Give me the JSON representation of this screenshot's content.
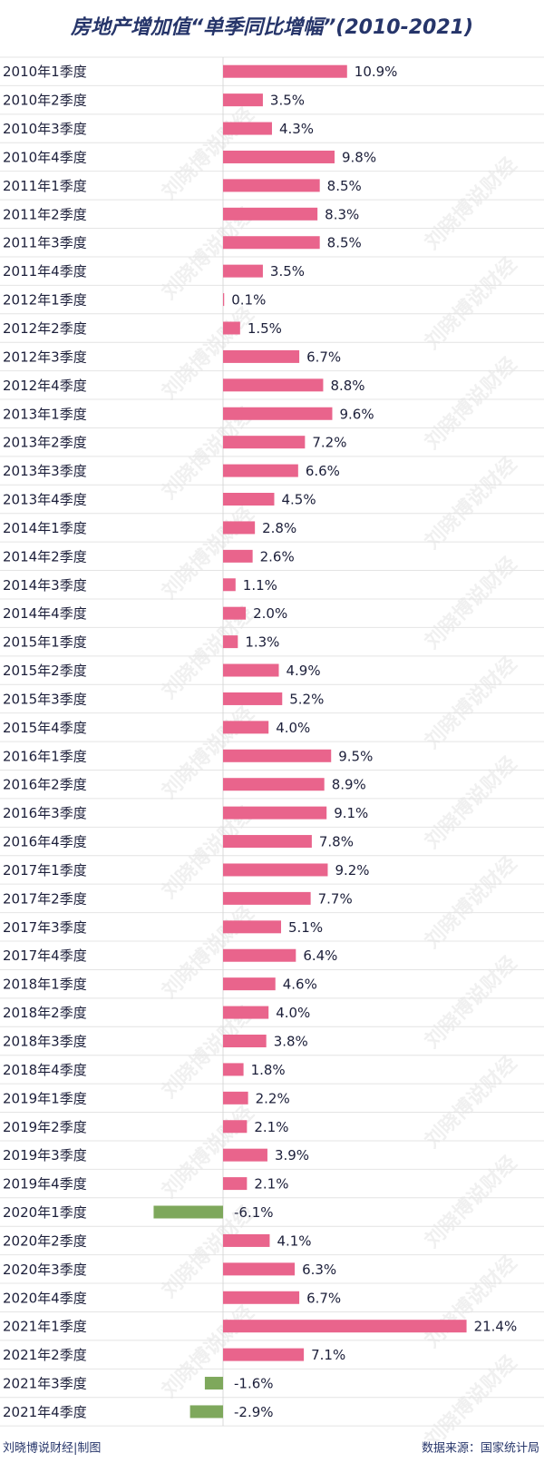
{
  "chart_data": {
    "type": "hbar",
    "title": "房地产增加值“单季同比增幅”(2010-2021)",
    "categories": [
      "2010年1季度",
      "2010年2季度",
      "2010年3季度",
      "2010年4季度",
      "2011年1季度",
      "2011年2季度",
      "2011年3季度",
      "2011年4季度",
      "2012年1季度",
      "2012年2季度",
      "2012年3季度",
      "2012年4季度",
      "2013年1季度",
      "2013年2季度",
      "2013年3季度",
      "2013年4季度",
      "2014年1季度",
      "2014年2季度",
      "2014年3季度",
      "2014年4季度",
      "2015年1季度",
      "2015年2季度",
      "2015年3季度",
      "2015年4季度",
      "2016年1季度",
      "2016年2季度",
      "2016年3季度",
      "2016年4季度",
      "2017年1季度",
      "2017年2季度",
      "2017年3季度",
      "2017年4季度",
      "2018年1季度",
      "2018年2季度",
      "2018年3季度",
      "2018年4季度",
      "2019年1季度",
      "2019年2季度",
      "2019年3季度",
      "2019年4季度",
      "2020年1季度",
      "2020年2季度",
      "2020年3季度",
      "2020年4季度",
      "2021年1季度",
      "2021年2季度",
      "2021年3季度",
      "2021年4季度"
    ],
    "values": [
      10.9,
      3.5,
      4.3,
      9.8,
      8.5,
      8.3,
      8.5,
      3.5,
      0.1,
      1.5,
      6.7,
      8.8,
      9.6,
      7.2,
      6.6,
      4.5,
      2.8,
      2.6,
      1.1,
      2.0,
      1.3,
      4.9,
      5.2,
      4.0,
      9.5,
      8.9,
      9.1,
      7.8,
      9.2,
      7.7,
      5.1,
      6.4,
      4.6,
      4.0,
      3.8,
      1.8,
      2.2,
      2.1,
      3.9,
      2.1,
      -6.1,
      4.1,
      6.3,
      6.7,
      21.4,
      7.1,
      -1.6,
      -2.9
    ],
    "value_labels": [
      "10.9%",
      "3.5%",
      "4.3%",
      "9.8%",
      "8.5%",
      "8.3%",
      "8.5%",
      "3.5%",
      "0.1%",
      "1.5%",
      "6.7%",
      "8.8%",
      "9.6%",
      "7.2%",
      "6.6%",
      "4.5%",
      "2.8%",
      "2.6%",
      "1.1%",
      "2.0%",
      "1.3%",
      "4.9%",
      "5.2%",
      "4.0%",
      "9.5%",
      "8.9%",
      "9.1%",
      "7.8%",
      "9.2%",
      "7.7%",
      "5.1%",
      "6.4%",
      "4.6%",
      "4.0%",
      "3.8%",
      "1.8%",
      "2.2%",
      "2.1%",
      "3.9%",
      "2.1%",
      "-6.1%",
      "4.1%",
      "6.3%",
      "6.7%",
      "21.4%",
      "7.1%",
      "-1.6%",
      "-2.9%"
    ],
    "color": "#e9648c",
    "negative_color": "#7ea85c",
    "watermark": "刘晓博说财经",
    "credit": "刘晓博说财经|制图",
    "source": "数据来源：国家统计局"
  }
}
